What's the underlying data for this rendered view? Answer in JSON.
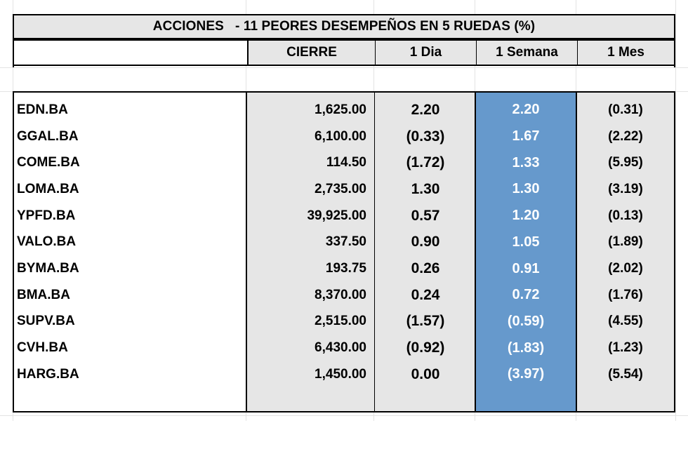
{
  "title": "ACCIONES   - 11 PEORES DESEMPEÑOS EN 5 RUEDAS (%)",
  "columns": [
    "CIERRE",
    "1 Dia",
    "1 Semana",
    "1 Mes"
  ],
  "colors": {
    "header_bg": "#e6e6e6",
    "highlight_col": "#6699cc",
    "grid": "#e3e3e3"
  },
  "rows": [
    {
      "ticker": "EDN.BA",
      "close": "1,625.00",
      "day": "2.20",
      "week": "2.20",
      "month": "(0.31)"
    },
    {
      "ticker": "GGAL.BA",
      "close": "6,100.00",
      "day": "(0.33)",
      "week": "1.67",
      "month": "(2.22)"
    },
    {
      "ticker": "COME.BA",
      "close": "114.50",
      "day": "(1.72)",
      "week": "1.33",
      "month": "(5.95)"
    },
    {
      "ticker": "LOMA.BA",
      "close": "2,735.00",
      "day": "1.30",
      "week": "1.30",
      "month": "(3.19)"
    },
    {
      "ticker": "YPFD.BA",
      "close": "39,925.00",
      "day": "0.57",
      "week": "1.20",
      "month": "(0.13)"
    },
    {
      "ticker": "VALO.BA",
      "close": "337.50",
      "day": "0.90",
      "week": "1.05",
      "month": "(1.89)"
    },
    {
      "ticker": "BYMA.BA",
      "close": "193.75",
      "day": "0.26",
      "week": "0.91",
      "month": "(2.02)"
    },
    {
      "ticker": "BMA.BA",
      "close": "8,370.00",
      "day": "0.24",
      "week": "0.72",
      "month": "(1.76)"
    },
    {
      "ticker": "SUPV.BA",
      "close": "2,515.00",
      "day": "(1.57)",
      "week": "(0.59)",
      "month": "(4.55)"
    },
    {
      "ticker": "CVH.BA",
      "close": "6,430.00",
      "day": "(0.92)",
      "week": "(1.83)",
      "month": "(1.23)"
    },
    {
      "ticker": "HARG.BA",
      "close": "1,450.00",
      "day": "0.00",
      "week": "(3.97)",
      "month": "(5.54)"
    }
  ]
}
